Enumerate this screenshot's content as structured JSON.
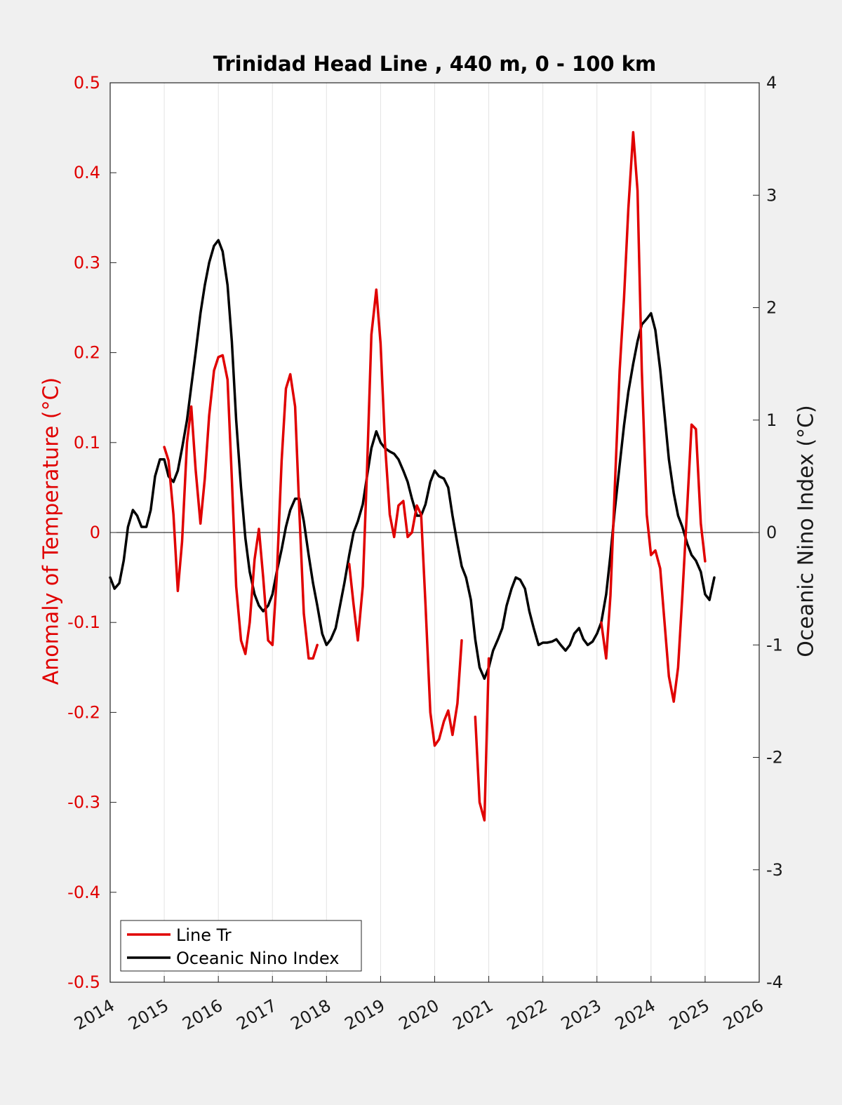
{
  "chart_data": {
    "type": "line",
    "title": "Trinidad Head Line , 440 m, 0 - 100 km",
    "ylabel_left": "Anomaly of Temperature (°C)",
    "ylabel_right": "Oceanic Nino Index (°C)",
    "xlim": [
      2014,
      2026
    ],
    "ylim_left": [
      -0.5,
      0.5
    ],
    "ylim_right": [
      -4,
      4
    ],
    "x_ticks": [
      "2014",
      "2015",
      "2016",
      "2017",
      "2018",
      "2019",
      "2020",
      "2021",
      "2022",
      "2023",
      "2024",
      "2025",
      "2026"
    ],
    "y_left_ticks": [
      "0.5",
      "0.4",
      "0.3",
      "0.2",
      "0.1",
      "0",
      "-0.1",
      "-0.2",
      "-0.3",
      "-0.4",
      "-0.5"
    ],
    "y_right_ticks": [
      "4",
      "3",
      "2",
      "1",
      "0",
      "-1",
      "-2",
      "-3",
      "-4"
    ],
    "grid": "vertical",
    "legend_position": "bottom-left",
    "colors": {
      "line_tr": "#e00000",
      "oni": "#000000",
      "left_axis": "#e00000"
    },
    "series": [
      {
        "name": "Line Tr",
        "axis": "left",
        "segments": [
          [
            [
              2015.0,
              0.095
            ],
            [
              2015.08,
              0.08
            ],
            [
              2015.17,
              0.02
            ],
            [
              2015.25,
              -0.065
            ],
            [
              2015.33,
              -0.01
            ],
            [
              2015.42,
              0.1
            ],
            [
              2015.5,
              0.14
            ],
            [
              2015.58,
              0.07
            ],
            [
              2015.67,
              0.01
            ],
            [
              2015.75,
              0.06
            ],
            [
              2015.83,
              0.13
            ],
            [
              2015.92,
              0.18
            ],
            [
              2016.0,
              0.195
            ],
            [
              2016.08,
              0.197
            ],
            [
              2016.17,
              0.17
            ],
            [
              2016.25,
              0.06
            ],
            [
              2016.33,
              -0.06
            ],
            [
              2016.42,
              -0.12
            ],
            [
              2016.5,
              -0.135
            ],
            [
              2016.58,
              -0.1
            ],
            [
              2016.67,
              -0.03
            ],
            [
              2016.75,
              0.004
            ],
            [
              2016.83,
              -0.05
            ],
            [
              2016.92,
              -0.12
            ],
            [
              2017.0,
              -0.125
            ],
            [
              2017.08,
              -0.05
            ],
            [
              2017.17,
              0.08
            ],
            [
              2017.25,
              0.16
            ],
            [
              2017.33,
              0.176
            ],
            [
              2017.42,
              0.14
            ],
            [
              2017.5,
              0.02
            ],
            [
              2017.58,
              -0.09
            ],
            [
              2017.67,
              -0.14
            ],
            [
              2017.75,
              -0.14
            ],
            [
              2017.83,
              -0.125
            ]
          ],
          [
            [
              2018.42,
              -0.035
            ],
            [
              2018.5,
              -0.08
            ],
            [
              2018.58,
              -0.12
            ],
            [
              2018.67,
              -0.06
            ],
            [
              2018.75,
              0.07
            ],
            [
              2018.83,
              0.22
            ],
            [
              2018.92,
              0.27
            ],
            [
              2019.0,
              0.21
            ],
            [
              2019.08,
              0.1
            ],
            [
              2019.17,
              0.02
            ],
            [
              2019.25,
              -0.005
            ],
            [
              2019.33,
              0.03
            ],
            [
              2019.42,
              0.035
            ],
            [
              2019.5,
              -0.005
            ],
            [
              2019.58,
              0.0
            ],
            [
              2019.67,
              0.03
            ],
            [
              2019.75,
              0.02
            ],
            [
              2019.83,
              -0.08
            ],
            [
              2019.92,
              -0.2
            ],
            [
              2020.0,
              -0.237
            ],
            [
              2020.08,
              -0.23
            ],
            [
              2020.17,
              -0.21
            ],
            [
              2020.25,
              -0.198
            ],
            [
              2020.33,
              -0.225
            ],
            [
              2020.42,
              -0.19
            ],
            [
              2020.5,
              -0.12
            ]
          ],
          [
            [
              2020.75,
              -0.205
            ],
            [
              2020.83,
              -0.3
            ],
            [
              2020.92,
              -0.32
            ],
            [
              2021.0,
              -0.14
            ]
          ],
          [
            [
              2023.08,
              -0.1
            ],
            [
              2023.17,
              -0.14
            ],
            [
              2023.25,
              -0.07
            ],
            [
              2023.33,
              0.05
            ],
            [
              2023.42,
              0.18
            ],
            [
              2023.5,
              0.26
            ],
            [
              2023.58,
              0.36
            ],
            [
              2023.67,
              0.445
            ],
            [
              2023.75,
              0.38
            ],
            [
              2023.83,
              0.18
            ],
            [
              2023.92,
              0.02
            ],
            [
              2024.0,
              -0.025
            ],
            [
              2024.08,
              -0.02
            ],
            [
              2024.17,
              -0.04
            ],
            [
              2024.25,
              -0.1
            ],
            [
              2024.33,
              -0.16
            ],
            [
              2024.42,
              -0.188
            ],
            [
              2024.5,
              -0.15
            ],
            [
              2024.58,
              -0.07
            ],
            [
              2024.67,
              0.03
            ],
            [
              2024.75,
              0.12
            ],
            [
              2024.83,
              0.115
            ],
            [
              2024.92,
              0.01
            ],
            [
              2025.0,
              -0.032
            ]
          ]
        ]
      },
      {
        "name": "Oceanic Nino Index",
        "axis": "right",
        "segments": [
          [
            [
              2014.0,
              -0.4
            ],
            [
              2014.08,
              -0.5
            ],
            [
              2014.17,
              -0.45
            ],
            [
              2014.25,
              -0.25
            ],
            [
              2014.33,
              0.05
            ],
            [
              2014.42,
              0.2
            ],
            [
              2014.5,
              0.15
            ],
            [
              2014.58,
              0.05
            ],
            [
              2014.67,
              0.05
            ],
            [
              2014.75,
              0.2
            ],
            [
              2014.83,
              0.5
            ],
            [
              2014.92,
              0.65
            ],
            [
              2015.0,
              0.65
            ],
            [
              2015.08,
              0.5
            ],
            [
              2015.17,
              0.45
            ],
            [
              2015.25,
              0.55
            ],
            [
              2015.33,
              0.75
            ],
            [
              2015.42,
              1.0
            ],
            [
              2015.5,
              1.3
            ],
            [
              2015.58,
              1.6
            ],
            [
              2015.67,
              1.95
            ],
            [
              2015.75,
              2.2
            ],
            [
              2015.83,
              2.4
            ],
            [
              2015.92,
              2.55
            ],
            [
              2016.0,
              2.6
            ],
            [
              2016.08,
              2.5
            ],
            [
              2016.17,
              2.2
            ],
            [
              2016.25,
              1.7
            ],
            [
              2016.33,
              1.0
            ],
            [
              2016.42,
              0.4
            ],
            [
              2016.5,
              -0.05
            ],
            [
              2016.58,
              -0.35
            ],
            [
              2016.67,
              -0.55
            ],
            [
              2016.75,
              -0.65
            ],
            [
              2016.83,
              -0.7
            ],
            [
              2016.92,
              -0.65
            ],
            [
              2017.0,
              -0.55
            ],
            [
              2017.08,
              -0.35
            ],
            [
              2017.17,
              -0.15
            ],
            [
              2017.25,
              0.05
            ],
            [
              2017.33,
              0.2
            ],
            [
              2017.42,
              0.3
            ],
            [
              2017.5,
              0.3
            ],
            [
              2017.58,
              0.1
            ],
            [
              2017.67,
              -0.2
            ],
            [
              2017.75,
              -0.45
            ],
            [
              2017.83,
              -0.65
            ],
            [
              2017.92,
              -0.9
            ],
            [
              2018.0,
              -1.0
            ],
            [
              2018.08,
              -0.95
            ],
            [
              2018.17,
              -0.85
            ],
            [
              2018.25,
              -0.65
            ],
            [
              2018.33,
              -0.45
            ],
            [
              2018.42,
              -0.2
            ],
            [
              2018.5,
              0.0
            ],
            [
              2018.58,
              0.1
            ],
            [
              2018.67,
              0.25
            ],
            [
              2018.75,
              0.5
            ],
            [
              2018.83,
              0.75
            ],
            [
              2018.92,
              0.9
            ],
            [
              2019.0,
              0.8
            ],
            [
              2019.08,
              0.75
            ],
            [
              2019.17,
              0.72
            ],
            [
              2019.25,
              0.7
            ],
            [
              2019.33,
              0.65
            ],
            [
              2019.42,
              0.55
            ],
            [
              2019.5,
              0.45
            ],
            [
              2019.58,
              0.3
            ],
            [
              2019.67,
              0.15
            ],
            [
              2019.75,
              0.15
            ],
            [
              2019.83,
              0.25
            ],
            [
              2019.92,
              0.45
            ],
            [
              2020.0,
              0.55
            ],
            [
              2020.08,
              0.5
            ],
            [
              2020.17,
              0.48
            ],
            [
              2020.25,
              0.4
            ],
            [
              2020.33,
              0.15
            ],
            [
              2020.42,
              -0.1
            ],
            [
              2020.5,
              -0.3
            ],
            [
              2020.58,
              -0.4
            ],
            [
              2020.67,
              -0.6
            ],
            [
              2020.75,
              -0.95
            ],
            [
              2020.83,
              -1.2
            ],
            [
              2020.92,
              -1.3
            ],
            [
              2021.0,
              -1.2
            ],
            [
              2021.08,
              -1.05
            ],
            [
              2021.17,
              -0.95
            ],
            [
              2021.25,
              -0.85
            ],
            [
              2021.33,
              -0.65
            ],
            [
              2021.42,
              -0.5
            ],
            [
              2021.5,
              -0.4
            ],
            [
              2021.58,
              -0.42
            ],
            [
              2021.67,
              -0.5
            ],
            [
              2021.75,
              -0.7
            ],
            [
              2021.83,
              -0.85
            ],
            [
              2021.92,
              -1.0
            ],
            [
              2022.0,
              -0.98
            ],
            [
              2022.08,
              -0.98
            ],
            [
              2022.17,
              -0.97
            ],
            [
              2022.25,
              -0.95
            ],
            [
              2022.33,
              -1.0
            ],
            [
              2022.42,
              -1.05
            ],
            [
              2022.5,
              -1.0
            ],
            [
              2022.58,
              -0.9
            ],
            [
              2022.67,
              -0.85
            ],
            [
              2022.75,
              -0.95
            ],
            [
              2022.83,
              -1.0
            ],
            [
              2022.92,
              -0.97
            ],
            [
              2023.0,
              -0.9
            ],
            [
              2023.08,
              -0.8
            ],
            [
              2023.17,
              -0.55
            ],
            [
              2023.25,
              -0.2
            ],
            [
              2023.33,
              0.2
            ],
            [
              2023.42,
              0.6
            ],
            [
              2023.5,
              0.95
            ],
            [
              2023.58,
              1.25
            ],
            [
              2023.67,
              1.5
            ],
            [
              2023.75,
              1.7
            ],
            [
              2023.83,
              1.85
            ],
            [
              2023.92,
              1.9
            ],
            [
              2024.0,
              1.95
            ],
            [
              2024.08,
              1.8
            ],
            [
              2024.17,
              1.45
            ],
            [
              2024.25,
              1.05
            ],
            [
              2024.33,
              0.65
            ],
            [
              2024.42,
              0.35
            ],
            [
              2024.5,
              0.15
            ],
            [
              2024.58,
              0.05
            ],
            [
              2024.67,
              -0.1
            ],
            [
              2024.75,
              -0.2
            ],
            [
              2024.83,
              -0.25
            ],
            [
              2024.92,
              -0.35
            ],
            [
              2025.0,
              -0.55
            ],
            [
              2025.08,
              -0.6
            ],
            [
              2025.17,
              -0.4
            ]
          ]
        ]
      }
    ]
  }
}
